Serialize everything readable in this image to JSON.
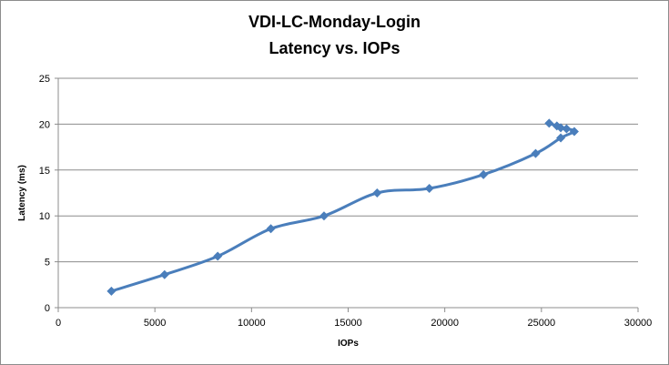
{
  "chart_data": {
    "type": "scatter",
    "title_line1": "VDI-LC-Monday-Login",
    "title_line2": "Latency vs. IOPs",
    "xlabel": "IOPs",
    "ylabel": "Latency (ms)",
    "xlim": [
      0,
      30000
    ],
    "ylim": [
      0,
      25
    ],
    "x_ticks": [
      0,
      5000,
      10000,
      15000,
      20000,
      25000,
      30000
    ],
    "y_ticks": [
      0,
      5,
      10,
      15,
      20,
      25
    ],
    "grid": "horizontal",
    "legend": "none",
    "smoothed": true,
    "series_color": "#4a7ebb",
    "series": [
      {
        "x": [
          2750,
          5500,
          8250,
          11000,
          13750,
          16500,
          19200,
          22000,
          24700,
          26000,
          26700,
          26300,
          26000,
          25800,
          25400
        ],
        "y": [
          1.8,
          3.6,
          5.6,
          8.6,
          10.0,
          12.5,
          13.0,
          14.5,
          16.8,
          18.5,
          19.2,
          19.5,
          19.6,
          19.8,
          20.1
        ]
      }
    ]
  }
}
